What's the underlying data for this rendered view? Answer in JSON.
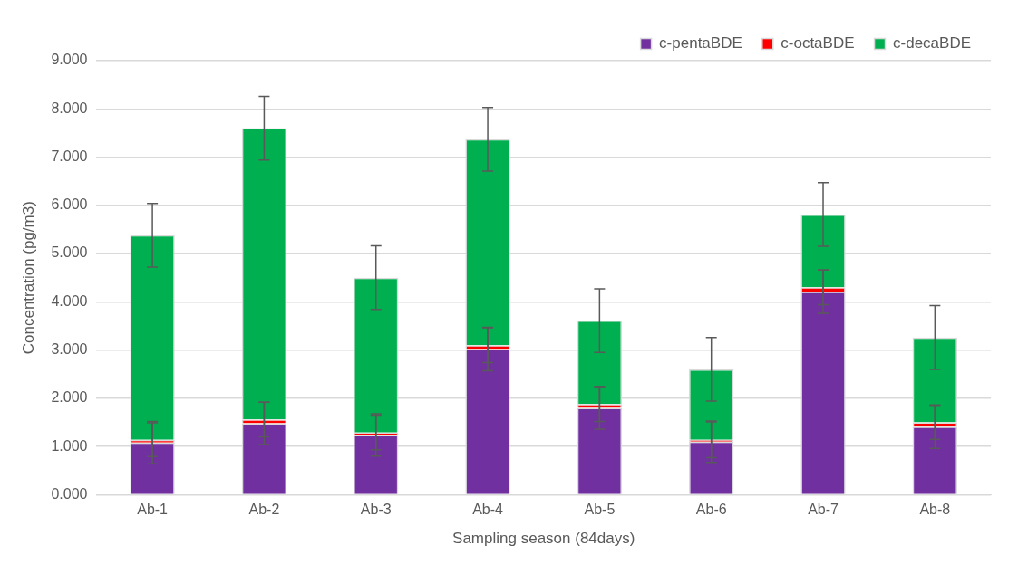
{
  "chart_data": {
    "type": "bar",
    "stacked": true,
    "xlabel": "Sampling season (84days)",
    "ylabel": "Concentration (pg/m3)",
    "categories": [
      "Ab-1",
      "Ab-2",
      "Ab-3",
      "Ab-4",
      "Ab-5",
      "Ab-6",
      "Ab-7",
      "Ab-8"
    ],
    "series": [
      {
        "name": "c-pentaBDE",
        "color": "#7030a0",
        "values": [
          1.08,
          1.48,
          1.24,
          3.02,
          1.8,
          1.1,
          4.21,
          1.41
        ],
        "errors": [
          0.44,
          0.44,
          0.44,
          0.45,
          0.44,
          0.43,
          0.45,
          0.45
        ]
      },
      {
        "name": "c-octaBDE",
        "color": "#ff0000",
        "values": [
          0.06,
          0.08,
          0.05,
          0.08,
          0.08,
          0.04,
          0.09,
          0.09
        ],
        "errors": [
          0.35,
          0.36,
          0.36,
          0.36,
          0.36,
          0.37,
          0.36,
          0.35
        ]
      },
      {
        "name": "c-decaBDE",
        "color": "#00b050",
        "values": [
          4.24,
          6.04,
          3.21,
          4.27,
          1.73,
          1.46,
          1.51,
          1.76
        ],
        "errors": [
          0.66,
          0.66,
          0.66,
          0.66,
          0.66,
          0.66,
          0.66,
          0.66
        ]
      }
    ],
    "ylim": [
      0,
      9
    ],
    "yticks": [
      {
        "value": 0,
        "label": "0.000"
      },
      {
        "value": 1,
        "label": "1.000"
      },
      {
        "value": 2,
        "label": "2.000"
      },
      {
        "value": 3,
        "label": "3.000"
      },
      {
        "value": 4,
        "label": "4.000"
      },
      {
        "value": 5,
        "label": "5.000"
      },
      {
        "value": 6,
        "label": "6.000"
      },
      {
        "value": 7,
        "label": "7.000"
      },
      {
        "value": 8,
        "label": "8.000"
      },
      {
        "value": 9,
        "label": "9.000"
      }
    ],
    "grid": "y",
    "legend": "top right"
  }
}
